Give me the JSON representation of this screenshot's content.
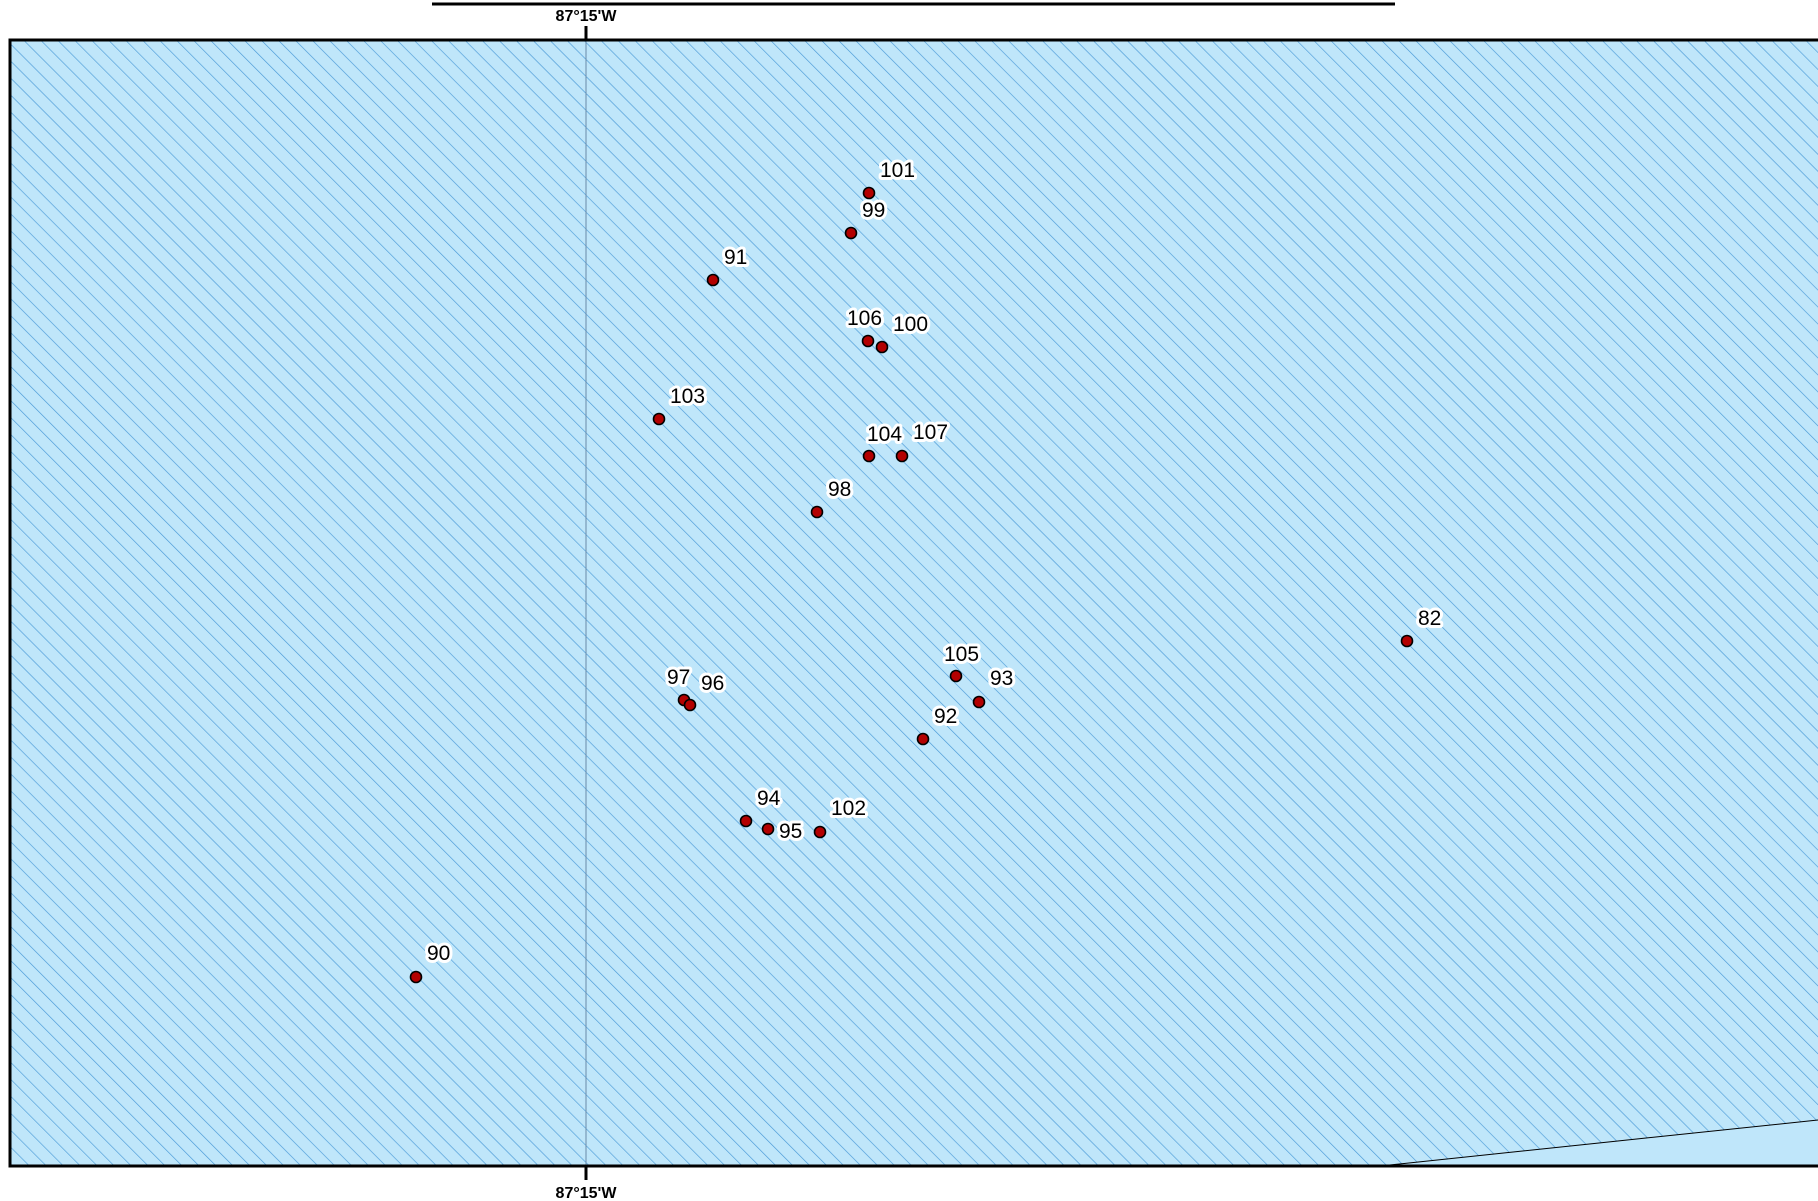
{
  "colors": {
    "water_fill": "#bfe6fa",
    "hatch": "#4a9ad8",
    "point_fill": "#b30000",
    "point_stroke": "#000000",
    "frame": "#000000",
    "meridian": "#6a8aa8"
  },
  "graticule": {
    "top_label": "87°15'W",
    "bottom_label": "87°15'W"
  },
  "points": [
    {
      "label": "101",
      "name": "point-101"
    },
    {
      "label": "99",
      "name": "point-99"
    },
    {
      "label": "91",
      "name": "point-91"
    },
    {
      "label": "106",
      "name": "point-106"
    },
    {
      "label": "100",
      "name": "point-100"
    },
    {
      "label": "103",
      "name": "point-103"
    },
    {
      "label": "104",
      "name": "point-104"
    },
    {
      "label": "107",
      "name": "point-107"
    },
    {
      "label": "98",
      "name": "point-98"
    },
    {
      "label": "82",
      "name": "point-82"
    },
    {
      "label": "105",
      "name": "point-105"
    },
    {
      "label": "93",
      "name": "point-93"
    },
    {
      "label": "97",
      "name": "point-97"
    },
    {
      "label": "96",
      "name": "point-96"
    },
    {
      "label": "92",
      "name": "point-92"
    },
    {
      "label": "94",
      "name": "point-94"
    },
    {
      "label": "95",
      "name": "point-95"
    },
    {
      "label": "102",
      "name": "point-102"
    },
    {
      "label": "90",
      "name": "point-90"
    }
  ]
}
